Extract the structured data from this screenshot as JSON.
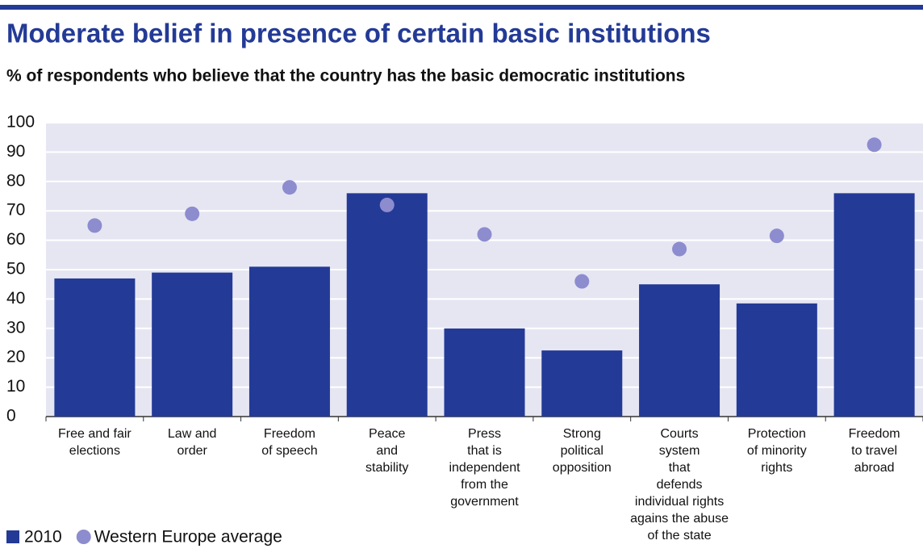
{
  "chart_data": {
    "type": "bar",
    "title": "Moderate belief in presence of certain basic institutions",
    "subtitle": "% of respondents who believe that the country has the basic democratic institutions",
    "categories": [
      "Free and fair\nelections",
      "Law and\norder",
      "Freedom\nof speech",
      "Peace\nand\nstability",
      "Press\nthat is\nindependent\nfrom the\ngovernment",
      "Strong\npolitical\nopposition",
      "Courts\nsystem\nthat\ndefends\nindividual rights\nagains the abuse\nof the state",
      "Protection\nof minority\nrights",
      "Freedom\nto travel\nabroad"
    ],
    "series": [
      {
        "name": "2010",
        "type": "bar",
        "color": "#233a96",
        "values": [
          47,
          49,
          51,
          76,
          30,
          22.5,
          45,
          38.5,
          76
        ]
      },
      {
        "name": "Western Europe average",
        "type": "scatter",
        "color": "#8d8ccf",
        "values": [
          65,
          69,
          78,
          72,
          62,
          46,
          57,
          61.5,
          92.5
        ]
      }
    ],
    "ylim": [
      0,
      100
    ],
    "yticks": [
      0,
      10,
      20,
      30,
      40,
      50,
      60,
      70,
      80,
      90,
      100
    ],
    "grid": true
  }
}
